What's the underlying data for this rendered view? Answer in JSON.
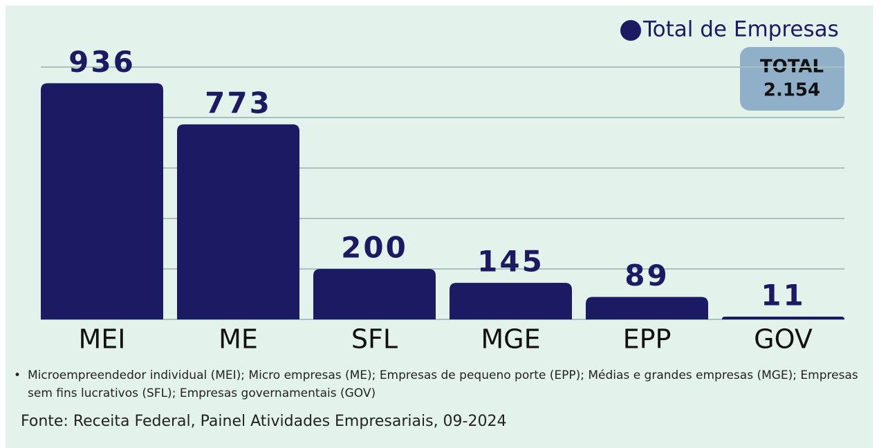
{
  "chart_data": {
    "type": "bar",
    "categories": [
      "MEI",
      "ME",
      "SFL",
      "MGE",
      "EPP",
      "GOV"
    ],
    "series": [
      {
        "name": "Total de Empresas",
        "color": "#1c1a63",
        "values": [
          936,
          773,
          200,
          145,
          89,
          11
        ]
      }
    ],
    "ylim": [
      0,
      1000
    ],
    "yticks": [
      0,
      200,
      400,
      600,
      800,
      1000
    ],
    "grid": true,
    "legend": "top-right",
    "total": {
      "label": "TOTAL",
      "value": 2154,
      "value_label": "2.154"
    },
    "note": "Microempreendedor individual (MEI); Micro empresas (ME); Empresas de pequeno porte (EPP); Médias e grandes empresas (MGE); Empresas sem fins lucrativos (SFL); Empresas governamentais (GOV)",
    "source": "Fonte: Receita Federal, Painel Atividades Empresariais, 09-2024"
  }
}
